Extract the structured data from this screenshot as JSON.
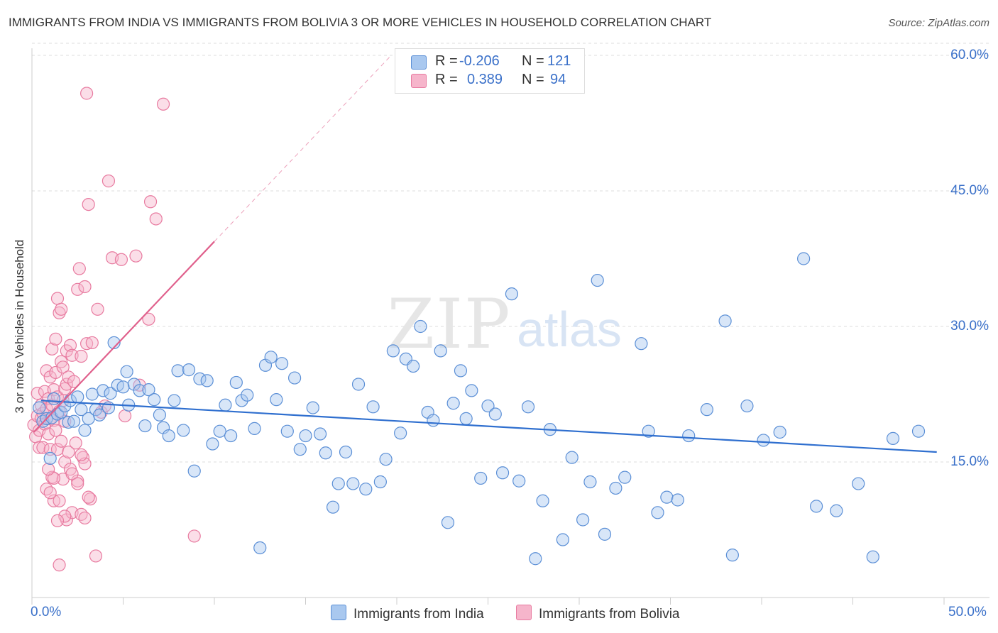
{
  "header": {
    "title": "IMMIGRANTS FROM INDIA VS IMMIGRANTS FROM BOLIVIA 3 OR MORE VEHICLES IN HOUSEHOLD CORRELATION CHART",
    "source": "Source: ZipAtlas.com"
  },
  "watermark": {
    "zip": "ZIP",
    "atlas": "atlas"
  },
  "legend_top": {
    "r_label": "R =",
    "n_label": "N =",
    "india": {
      "r": "-0.206",
      "n": "121"
    },
    "bolivia": {
      "r": "0.389",
      "n": "94"
    }
  },
  "colors": {
    "india_fill": "#a9c8ef",
    "india_stroke": "#5b8fd6",
    "india_line": "#2f6fcf",
    "bolivia_fill": "#f6b5cb",
    "bolivia_stroke": "#e87ba0",
    "bolivia_line": "#e0608c",
    "tick_text": "#3a70c9",
    "grid": "#dddddd"
  },
  "chart_data": {
    "type": "scatter",
    "title": "IMMIGRANTS FROM INDIA VS IMMIGRANTS FROM BOLIVIA 3 OR MORE VEHICLES IN HOUSEHOLD CORRELATION CHART",
    "xlabel": "",
    "ylabel": "3 or more Vehicles in Household",
    "xlim": [
      0,
      50
    ],
    "ylim": [
      0,
      60
    ],
    "x_tick_labels": [
      "0.0%",
      "50.0%"
    ],
    "y_ticks": [
      15,
      30,
      45,
      60
    ],
    "y_tick_labels": [
      "15.0%",
      "30.0%",
      "45.0%",
      "60.0%"
    ],
    "legend": [
      "Immigrants from India",
      "Immigrants from Bolivia"
    ],
    "series": [
      {
        "name": "Immigrants from India",
        "trend": {
          "x": [
            0.5,
            49.6
          ],
          "y": [
            21.8,
            16.1
          ]
        },
        "points": [
          [
            0.4,
            21.0
          ],
          [
            0.6,
            19.5
          ],
          [
            0.8,
            19.8
          ],
          [
            1.0,
            15.4
          ],
          [
            1.1,
            19.9
          ],
          [
            1.2,
            22.0
          ],
          [
            1.4,
            20.3
          ],
          [
            1.6,
            20.5
          ],
          [
            1.8,
            21.2
          ],
          [
            2.0,
            19.4
          ],
          [
            2.1,
            21.8
          ],
          [
            2.3,
            19.5
          ],
          [
            2.5,
            22.2
          ],
          [
            2.7,
            20.8
          ],
          [
            2.9,
            18.5
          ],
          [
            3.1,
            19.8
          ],
          [
            3.3,
            22.5
          ],
          [
            3.5,
            20.8
          ],
          [
            3.7,
            20.2
          ],
          [
            3.9,
            22.9
          ],
          [
            4.2,
            21.0
          ],
          [
            4.3,
            22.6
          ],
          [
            4.5,
            28.2
          ],
          [
            4.7,
            23.5
          ],
          [
            5.0,
            23.3
          ],
          [
            5.2,
            25.0
          ],
          [
            5.3,
            21.3
          ],
          [
            5.6,
            23.6
          ],
          [
            5.9,
            22.9
          ],
          [
            6.2,
            19.0
          ],
          [
            6.4,
            23.0
          ],
          [
            6.7,
            21.9
          ],
          [
            7.0,
            20.2
          ],
          [
            7.2,
            18.8
          ],
          [
            7.5,
            17.9
          ],
          [
            7.8,
            21.8
          ],
          [
            8.0,
            25.1
          ],
          [
            8.3,
            18.5
          ],
          [
            8.6,
            25.2
          ],
          [
            8.9,
            14.0
          ],
          [
            9.2,
            24.2
          ],
          [
            9.6,
            24.0
          ],
          [
            9.9,
            17.0
          ],
          [
            10.3,
            18.4
          ],
          [
            10.6,
            21.3
          ],
          [
            10.9,
            17.9
          ],
          [
            11.2,
            23.8
          ],
          [
            11.5,
            21.8
          ],
          [
            11.8,
            22.4
          ],
          [
            12.2,
            18.7
          ],
          [
            12.5,
            5.5
          ],
          [
            12.8,
            25.7
          ],
          [
            13.1,
            26.6
          ],
          [
            13.4,
            21.9
          ],
          [
            13.7,
            25.9
          ],
          [
            14.0,
            18.4
          ],
          [
            14.4,
            24.3
          ],
          [
            14.7,
            16.4
          ],
          [
            15.0,
            17.9
          ],
          [
            15.4,
            21.0
          ],
          [
            15.8,
            18.1
          ],
          [
            16.1,
            16.0
          ],
          [
            16.5,
            10.0
          ],
          [
            16.8,
            12.6
          ],
          [
            17.2,
            16.1
          ],
          [
            17.6,
            12.6
          ],
          [
            17.9,
            23.6
          ],
          [
            18.3,
            12.0
          ],
          [
            18.7,
            21.1
          ],
          [
            19.1,
            12.8
          ],
          [
            19.4,
            15.3
          ],
          [
            19.8,
            27.3
          ],
          [
            20.2,
            18.2
          ],
          [
            20.5,
            26.4
          ],
          [
            20.9,
            25.6
          ],
          [
            21.3,
            30.0
          ],
          [
            21.7,
            20.5
          ],
          [
            22.0,
            19.6
          ],
          [
            22.4,
            27.3
          ],
          [
            22.8,
            8.3
          ],
          [
            23.1,
            21.5
          ],
          [
            23.5,
            25.1
          ],
          [
            23.8,
            19.8
          ],
          [
            24.1,
            22.9
          ],
          [
            24.6,
            13.2
          ],
          [
            25.0,
            21.2
          ],
          [
            25.4,
            20.3
          ],
          [
            25.8,
            13.8
          ],
          [
            26.3,
            33.6
          ],
          [
            26.7,
            12.9
          ],
          [
            27.2,
            21.1
          ],
          [
            27.6,
            4.3
          ],
          [
            28.0,
            10.7
          ],
          [
            28.4,
            18.6
          ],
          [
            29.1,
            6.4
          ],
          [
            29.6,
            15.5
          ],
          [
            30.2,
            8.6
          ],
          [
            30.6,
            12.8
          ],
          [
            31.0,
            35.1
          ],
          [
            31.4,
            7.0
          ],
          [
            32.0,
            12.1
          ],
          [
            32.5,
            13.3
          ],
          [
            33.4,
            28.1
          ],
          [
            33.8,
            18.4
          ],
          [
            34.3,
            9.4
          ],
          [
            34.8,
            11.1
          ],
          [
            35.4,
            10.8
          ],
          [
            36.0,
            17.9
          ],
          [
            37.0,
            20.8
          ],
          [
            38.0,
            30.6
          ],
          [
            38.4,
            4.7
          ],
          [
            39.2,
            21.2
          ],
          [
            40.1,
            17.4
          ],
          [
            41.0,
            18.3
          ],
          [
            42.3,
            37.5
          ],
          [
            43.0,
            10.1
          ],
          [
            44.1,
            9.6
          ],
          [
            45.3,
            12.6
          ],
          [
            46.1,
            4.5
          ],
          [
            47.2,
            17.6
          ],
          [
            48.6,
            18.4
          ]
        ]
      },
      {
        "name": "Immigrants from Bolivia",
        "trend": {
          "x": [
            0.1,
            10.0
          ],
          "y": [
            18.3,
            39.4
          ],
          "extended": {
            "x": [
              10.0,
              19.6
            ],
            "y": [
              39.4,
              59.8
            ]
          }
        },
        "points": [
          [
            0.1,
            19.1
          ],
          [
            0.2,
            17.8
          ],
          [
            0.3,
            22.6
          ],
          [
            0.3,
            20.1
          ],
          [
            0.4,
            18.5
          ],
          [
            0.4,
            16.6
          ],
          [
            0.5,
            21.3
          ],
          [
            0.5,
            19.8
          ],
          [
            0.6,
            20.4
          ],
          [
            0.6,
            16.6
          ],
          [
            0.7,
            22.8
          ],
          [
            0.7,
            19.2
          ],
          [
            0.8,
            25.1
          ],
          [
            0.8,
            20.9
          ],
          [
            0.8,
            12.0
          ],
          [
            0.9,
            22.0
          ],
          [
            0.9,
            18.1
          ],
          [
            1.0,
            24.4
          ],
          [
            1.0,
            19.8
          ],
          [
            1.0,
            16.4
          ],
          [
            1.1,
            27.5
          ],
          [
            1.1,
            21.3
          ],
          [
            1.1,
            13.3
          ],
          [
            1.2,
            23.0
          ],
          [
            1.2,
            19.6
          ],
          [
            1.2,
            10.7
          ],
          [
            1.3,
            28.6
          ],
          [
            1.3,
            24.9
          ],
          [
            1.3,
            18.5
          ],
          [
            1.4,
            33.1
          ],
          [
            1.4,
            22.2
          ],
          [
            1.4,
            16.4
          ],
          [
            1.5,
            31.5
          ],
          [
            1.5,
            20.6
          ],
          [
            1.5,
            10.7
          ],
          [
            1.6,
            31.9
          ],
          [
            1.6,
            26.1
          ],
          [
            1.6,
            17.3
          ],
          [
            1.7,
            25.5
          ],
          [
            1.7,
            21.8
          ],
          [
            1.7,
            13.1
          ],
          [
            1.8,
            23.1
          ],
          [
            1.8,
            19.5
          ],
          [
            1.8,
            15.0
          ],
          [
            1.9,
            27.3
          ],
          [
            1.9,
            23.6
          ],
          [
            1.9,
            8.6
          ],
          [
            2.0,
            24.4
          ],
          [
            2.0,
            16.1
          ],
          [
            2.1,
            27.9
          ],
          [
            2.1,
            14.2
          ],
          [
            2.2,
            26.8
          ],
          [
            2.2,
            9.4
          ],
          [
            2.3,
            23.9
          ],
          [
            2.4,
            17.1
          ],
          [
            2.5,
            34.1
          ],
          [
            2.5,
            12.9
          ],
          [
            2.6,
            36.4
          ],
          [
            2.7,
            26.7
          ],
          [
            2.7,
            9.2
          ],
          [
            2.8,
            15.5
          ],
          [
            2.9,
            34.4
          ],
          [
            2.9,
            14.8
          ],
          [
            3.0,
            28.1
          ],
          [
            3.0,
            55.8
          ],
          [
            3.1,
            43.5
          ],
          [
            3.2,
            10.9
          ],
          [
            3.3,
            28.2
          ],
          [
            3.5,
            4.6
          ],
          [
            3.6,
            31.9
          ],
          [
            3.8,
            20.5
          ],
          [
            4.0,
            21.2
          ],
          [
            4.2,
            46.1
          ],
          [
            4.4,
            37.6
          ],
          [
            4.9,
            37.4
          ],
          [
            5.1,
            20.1
          ],
          [
            5.7,
            37.8
          ],
          [
            5.9,
            23.5
          ],
          [
            6.4,
            30.8
          ],
          [
            6.5,
            43.8
          ],
          [
            6.8,
            41.9
          ],
          [
            7.2,
            54.6
          ],
          [
            8.9,
            6.8
          ],
          [
            1.0,
            11.6
          ],
          [
            1.2,
            13.2
          ],
          [
            1.8,
            9.0
          ],
          [
            2.2,
            13.7
          ],
          [
            2.5,
            12.6
          ],
          [
            3.1,
            11.1
          ],
          [
            1.5,
            3.6
          ],
          [
            2.7,
            15.8
          ],
          [
            0.9,
            14.2
          ],
          [
            1.4,
            8.5
          ],
          [
            2.9,
            8.8
          ]
        ]
      }
    ]
  },
  "legend_bottom": {
    "india": "Immigrants from India",
    "bolivia": "Immigrants from Bolivia"
  }
}
